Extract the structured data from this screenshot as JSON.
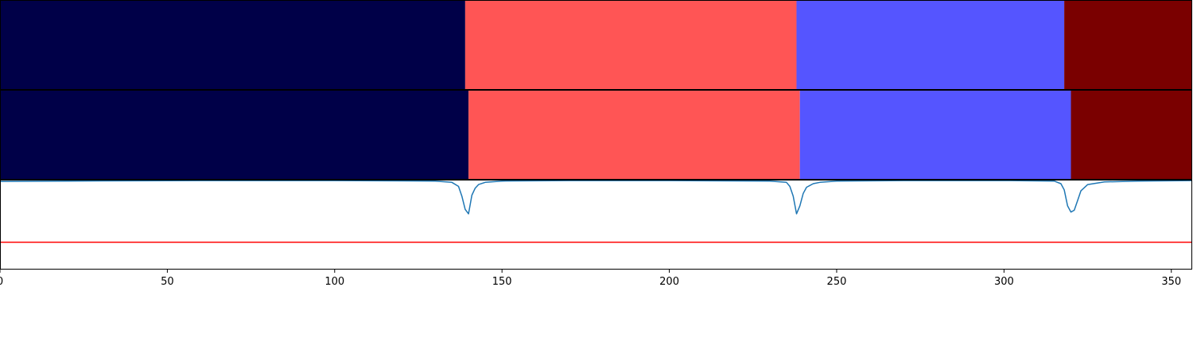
{
  "chart_data": [
    {
      "type": "segmentation_bar",
      "x_range": [
        0,
        356
      ],
      "segments": [
        {
          "start": 0,
          "end": 139,
          "color": "#000048"
        },
        {
          "start": 139,
          "end": 238,
          "color": "#ff5555"
        },
        {
          "start": 238,
          "end": 318,
          "color": "#5555ff"
        },
        {
          "start": 318,
          "end": 356,
          "color": "#7a0000"
        }
      ]
    },
    {
      "type": "segmentation_bar",
      "x_range": [
        0,
        356
      ],
      "segments": [
        {
          "start": 0,
          "end": 140,
          "color": "#000048"
        },
        {
          "start": 140,
          "end": 239,
          "color": "#ff5555"
        },
        {
          "start": 239,
          "end": 320,
          "color": "#5555ff"
        },
        {
          "start": 320,
          "end": 356,
          "color": "#7a0000"
        }
      ]
    },
    {
      "type": "line",
      "xlim": [
        0,
        356
      ],
      "ylim": [
        0,
        1.005
      ],
      "grid": false,
      "xticks": [
        0,
        50,
        100,
        150,
        200,
        250,
        300,
        350
      ],
      "xtick_labels": [
        "0",
        "50",
        "100",
        "150",
        "200",
        "250",
        "300",
        "350"
      ],
      "series": [
        {
          "color": "#1f77b4",
          "x": [
            0,
            20,
            60,
            100,
            130,
            135,
            137,
            138,
            139,
            140,
            141,
            142,
            143,
            145,
            150,
            170,
            200,
            230,
            235,
            236,
            237,
            238,
            239,
            240,
            241,
            243,
            245,
            250,
            270,
            300,
            315,
            317,
            318,
            319,
            320,
            321,
            322,
            323,
            325,
            330,
            340,
            356
          ],
          "y": [
            0.985,
            0.99,
            0.995,
            0.995,
            0.99,
            0.975,
            0.93,
            0.82,
            0.67,
            0.62,
            0.83,
            0.91,
            0.95,
            0.975,
            0.99,
            0.995,
            0.995,
            0.99,
            0.975,
            0.93,
            0.82,
            0.62,
            0.71,
            0.85,
            0.92,
            0.96,
            0.975,
            0.99,
            0.995,
            0.995,
            0.99,
            0.96,
            0.89,
            0.71,
            0.64,
            0.66,
            0.77,
            0.88,
            0.95,
            0.98,
            0.99,
            0.995
          ]
        },
        {
          "color": "#ff0000",
          "x": [
            0,
            356
          ],
          "y": [
            0.3,
            0.3
          ]
        }
      ]
    }
  ]
}
